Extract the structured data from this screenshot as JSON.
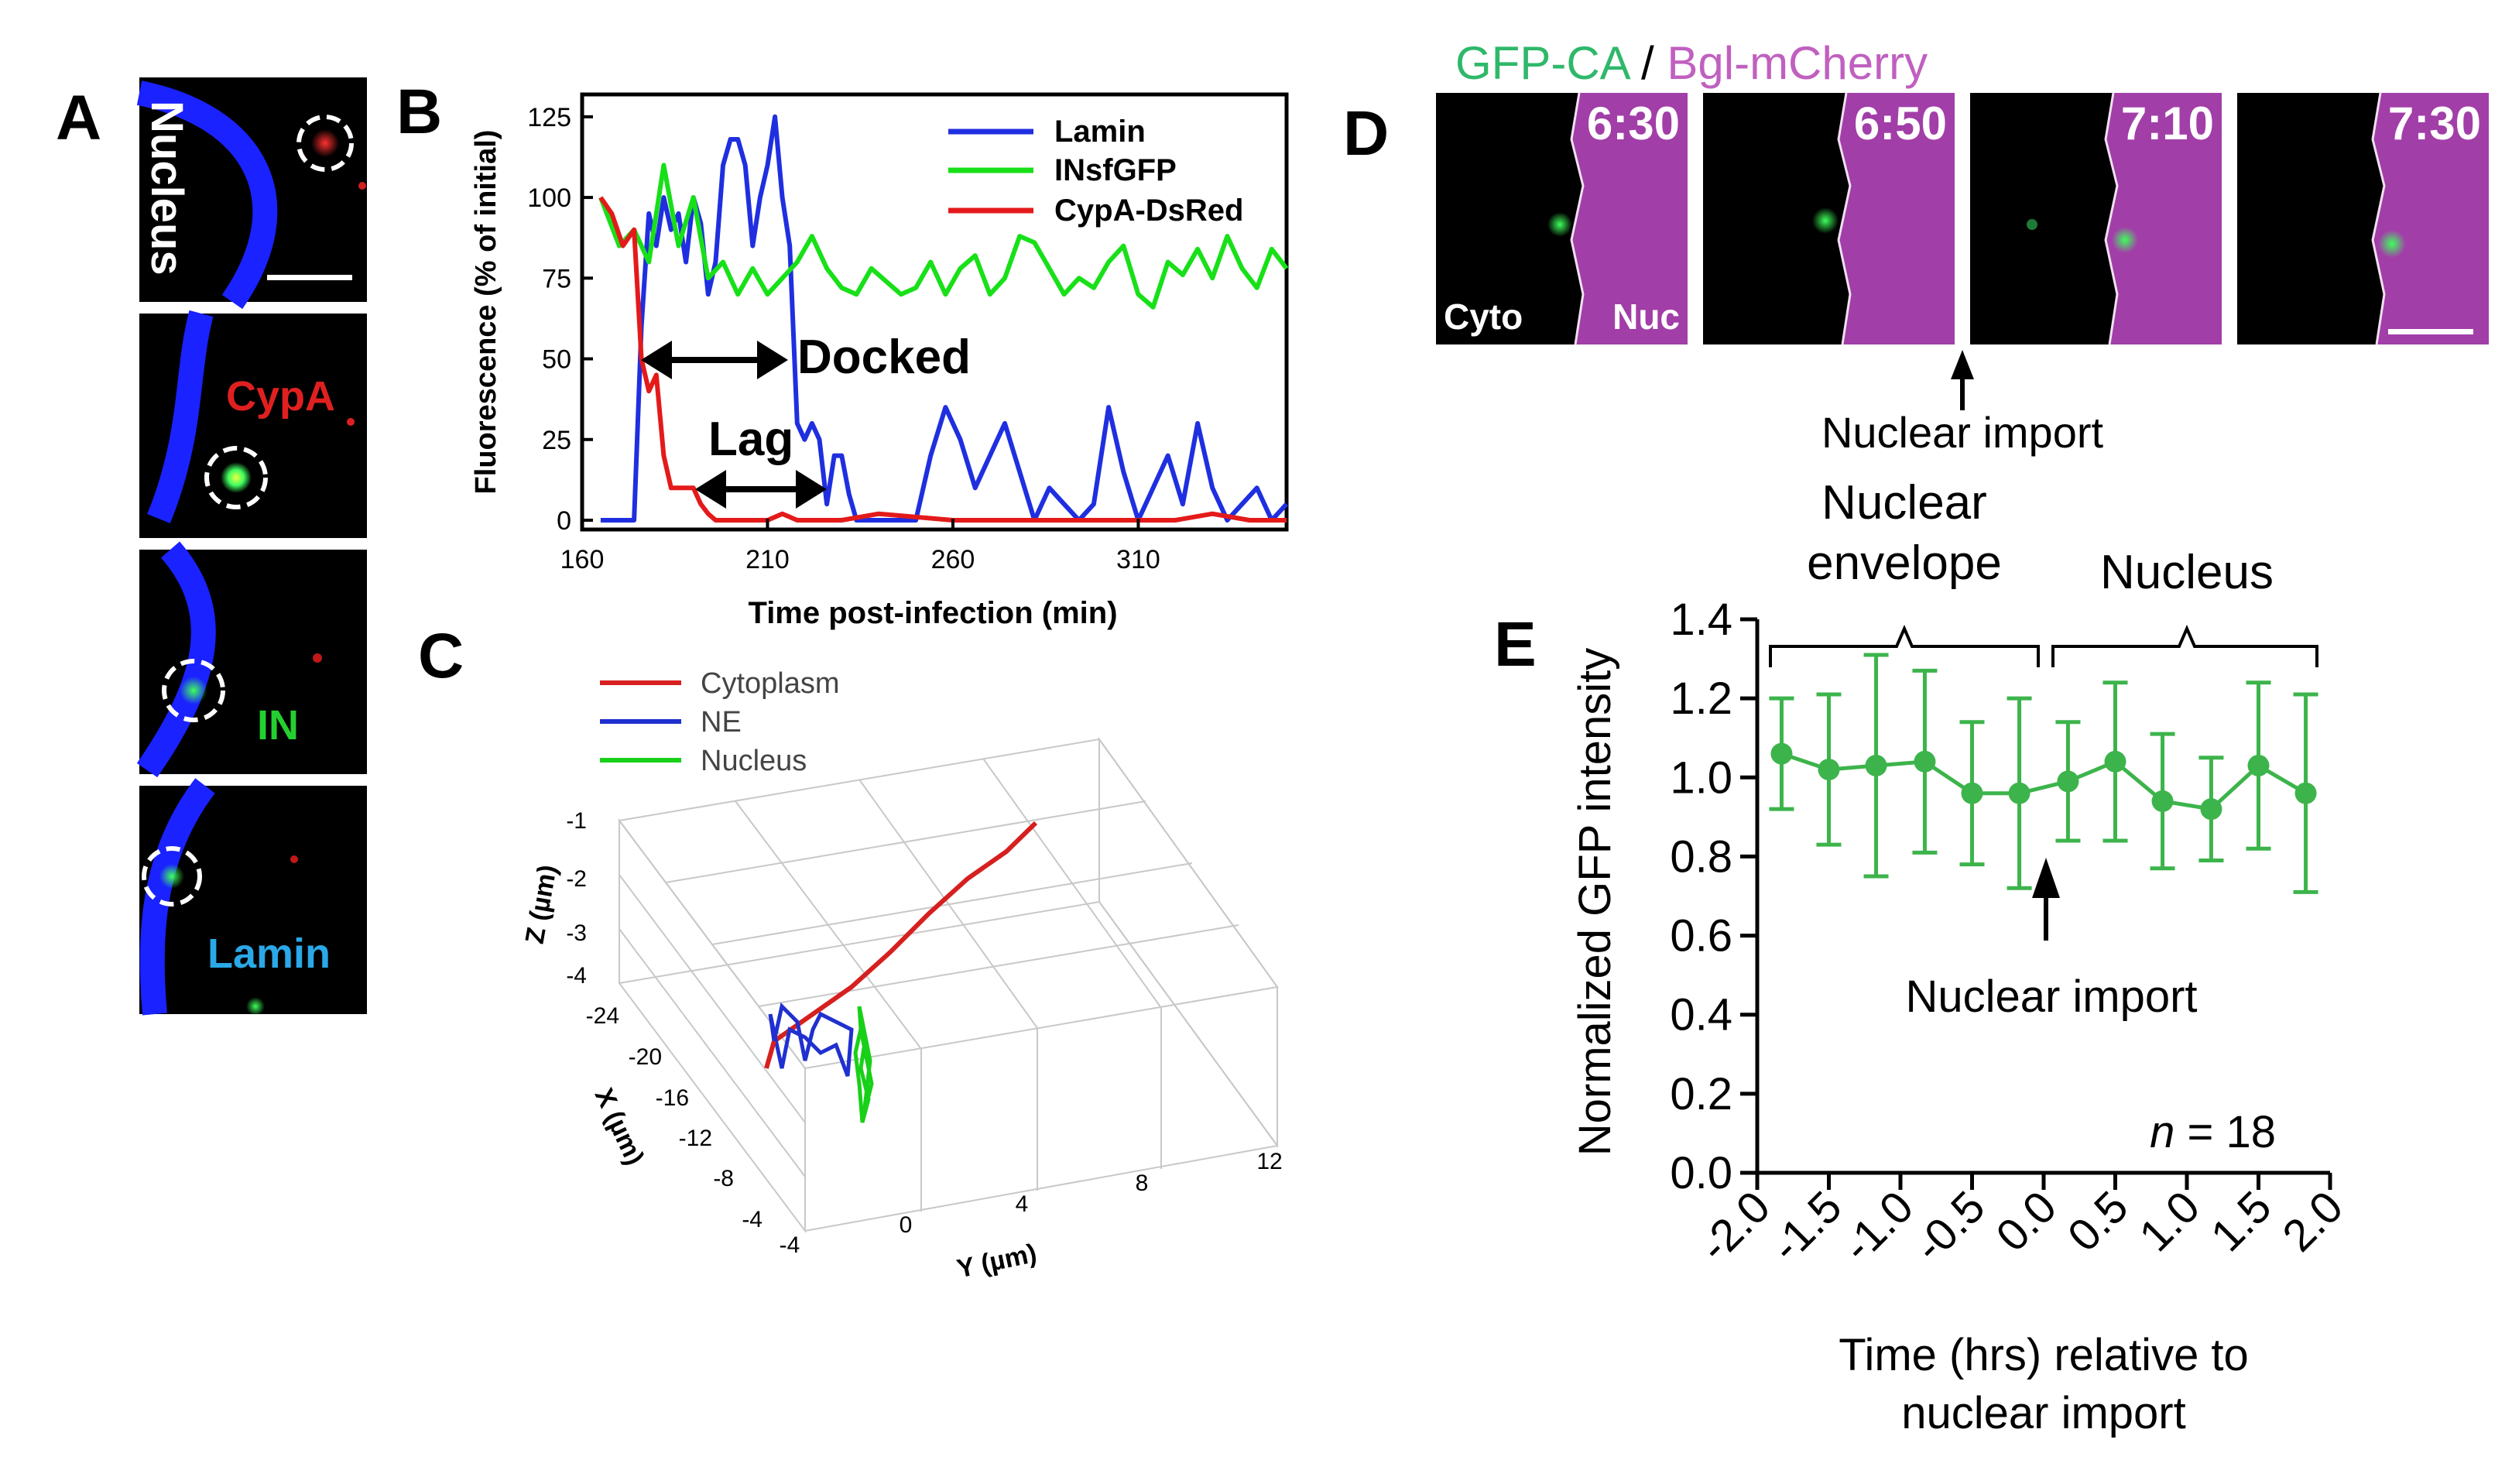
{
  "panels": {
    "a": {
      "letter": "A",
      "labels": [
        "Nucleus",
        "CypA",
        "IN",
        "Lamin"
      ]
    },
    "b": {
      "letter": "B"
    },
    "c": {
      "letter": "C"
    },
    "d": {
      "letter": "D"
    },
    "e": {
      "letter": "E"
    }
  },
  "micrograph_d": {
    "title_gfp": "GFP-CA",
    "title_sep": " / ",
    "title_bgl": "Bgl-mCherry",
    "frames": [
      "6:30",
      "6:50",
      "7:10",
      "7:30"
    ],
    "cyto_label": "Cyto",
    "nuc_label": "Nuc",
    "arrow_label": "Nuclear import"
  },
  "chart_data": [
    {
      "id": "B",
      "type": "line",
      "ylabel": "Fluorescence (% of initial)",
      "xlabel": "Time post-infection (min)",
      "xlim": [
        160,
        350
      ],
      "ylim": [
        0,
        130
      ],
      "xticks": [
        160,
        210,
        260,
        310
      ],
      "yticks": [
        0,
        25,
        50,
        75,
        100,
        125
      ],
      "legend_position": "top-right",
      "series": [
        {
          "name": "Lamin",
          "color": "#1f2fe0",
          "x": [
            165,
            170,
            174,
            176,
            178,
            180,
            182,
            184,
            186,
            188,
            190,
            192,
            194,
            196,
            198,
            200,
            202,
            204,
            206,
            208,
            210,
            212,
            214,
            216,
            218,
            220,
            222,
            224,
            226,
            228,
            230,
            232,
            234,
            236,
            238,
            240,
            242,
            244,
            246,
            250,
            254,
            258,
            262,
            266,
            270,
            274,
            278,
            282,
            286,
            290,
            294,
            298,
            302,
            306,
            310,
            314,
            318,
            322,
            326,
            330,
            334,
            338,
            342,
            346,
            350
          ],
          "y": [
            0,
            0,
            0,
            60,
            95,
            85,
            100,
            90,
            95,
            80,
            100,
            92,
            70,
            80,
            110,
            118,
            118,
            110,
            85,
            100,
            110,
            125,
            100,
            85,
            30,
            25,
            30,
            25,
            5,
            20,
            20,
            8,
            0,
            0,
            0,
            0,
            0,
            0,
            0,
            0,
            20,
            35,
            25,
            10,
            20,
            30,
            15,
            0,
            10,
            5,
            0,
            5,
            35,
            15,
            0,
            10,
            20,
            5,
            30,
            10,
            0,
            5,
            10,
            0,
            5
          ]
        },
        {
          "name": "INsfGFP",
          "color": "#18e018",
          "x": [
            165,
            170,
            174,
            178,
            182,
            186,
            190,
            194,
            198,
            202,
            206,
            210,
            214,
            218,
            222,
            226,
            230,
            234,
            238,
            242,
            246,
            250,
            254,
            258,
            262,
            266,
            270,
            274,
            278,
            282,
            286,
            290,
            294,
            298,
            302,
            306,
            310,
            314,
            318,
            322,
            326,
            330,
            334,
            338,
            342,
            346,
            350
          ],
          "y": [
            100,
            85,
            90,
            80,
            110,
            85,
            100,
            75,
            80,
            70,
            78,
            70,
            75,
            80,
            88,
            78,
            72,
            70,
            78,
            74,
            70,
            72,
            80,
            70,
            78,
            82,
            70,
            75,
            88,
            86,
            78,
            70,
            75,
            72,
            80,
            85,
            70,
            66,
            80,
            76,
            84,
            75,
            88,
            78,
            72,
            84,
            78
          ]
        },
        {
          "name": "CypA-DsRed",
          "color": "#e41a1a",
          "x": [
            165,
            168,
            171,
            174,
            176,
            178,
            180,
            182,
            184,
            186,
            188,
            190,
            192,
            194,
            196,
            200,
            210,
            214,
            218,
            222,
            230,
            240,
            260,
            280,
            300,
            320,
            330,
            340,
            350
          ],
          "y": [
            100,
            95,
            85,
            90,
            50,
            40,
            45,
            20,
            10,
            10,
            10,
            10,
            5,
            2,
            0,
            0,
            0,
            2,
            0,
            0,
            0,
            2,
            0,
            0,
            0,
            0,
            2,
            0,
            0
          ]
        }
      ],
      "annotations": [
        "Docked",
        "Lag"
      ]
    },
    {
      "id": "C",
      "type": "line",
      "projection": "3d",
      "xlabel": "Y (µm)",
      "ylabel": "X (µm)",
      "zlabel": "Z (µm)",
      "yticks_z": [
        "-1",
        "-2",
        "-3",
        "-4"
      ],
      "yticks_x": [
        "-24",
        "-20",
        "-16",
        "-12",
        "-8",
        "-4"
      ],
      "xticks_y": [
        "-4",
        "0",
        "4",
        "8",
        "12"
      ],
      "legend_position": "top-left",
      "series": [
        {
          "name": "Cytoplasm",
          "color": "#d62020"
        },
        {
          "name": "NE",
          "color": "#2030d0"
        },
        {
          "name": "Nucleus",
          "color": "#18d018"
        }
      ]
    },
    {
      "id": "E",
      "type": "scatter",
      "ylabel": "Normalized GFP intensity",
      "xlabel_line1": "Time (hrs) relative to",
      "xlabel_line2": "nuclear import",
      "xlim": [
        -2.0,
        2.0
      ],
      "ylim": [
        0.0,
        1.4
      ],
      "xtick_labels": [
        "-2.0",
        "-1.5",
        "-1.0",
        "-0.5",
        "0.0",
        "0.5",
        "1.0",
        "1.5",
        "2.0"
      ],
      "ytick_labels": [
        "0.0",
        "0.2",
        "0.4",
        "0.6",
        "0.8",
        "1.0",
        "1.2",
        "1.4"
      ],
      "color": "#3cb44b",
      "x": [
        -1.83,
        -1.5,
        -1.17,
        -0.83,
        -0.5,
        -0.17,
        0.17,
        0.5,
        0.83,
        1.17,
        1.5,
        1.83
      ],
      "y": [
        1.06,
        1.02,
        1.03,
        1.04,
        0.96,
        0.96,
        0.99,
        1.04,
        0.94,
        0.92,
        1.03,
        0.96
      ],
      "err": [
        0.14,
        0.19,
        0.28,
        0.23,
        0.18,
        0.24,
        0.15,
        0.2,
        0.17,
        0.13,
        0.21,
        0.25
      ],
      "brackets": [
        "Nuclear envelope",
        "Nucleus"
      ],
      "bracket_line1": "Nuclear",
      "bracket_line2": "envelope",
      "arrow_label": "Nuclear import",
      "n_label": "n",
      "n_value": " = 18"
    }
  ]
}
